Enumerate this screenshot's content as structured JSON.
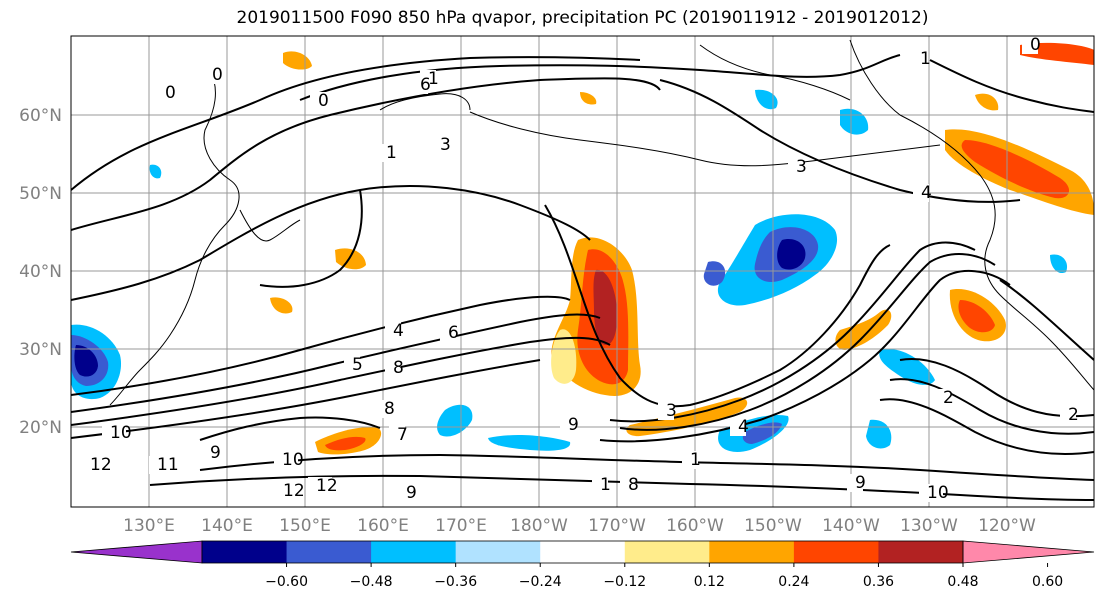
{
  "title": "2019011500 F090 850 hPa qvapor, precipitation PC (2019011912 - 2019012012)",
  "map": {
    "lat_labels": [
      "60°N",
      "50°N",
      "40°N",
      "30°N",
      "20°N"
    ],
    "lon_labels": [
      "130°E",
      "140°E",
      "150°E",
      "160°E",
      "170°E",
      "180°W",
      "170°W",
      "160°W",
      "150°W",
      "140°W",
      "130°W",
      "120°W"
    ],
    "contour_labels": [
      "0",
      "0",
      "1",
      "1",
      "0",
      "1",
      "3",
      "4",
      "4",
      "6",
      "5",
      "8",
      "8",
      "9",
      "9",
      "10",
      "12",
      "12",
      "9",
      "10",
      "9",
      "7",
      "3",
      "4",
      "2",
      "2",
      "0",
      "12",
      "11",
      "10",
      "6",
      "3",
      "1",
      "1",
      "8"
    ]
  },
  "colorbar": {
    "colors": [
      "#9932CC",
      "#00008B",
      "#3A5BD1",
      "#00BFFF",
      "#B0E2FF",
      "#FFFFFF",
      "#FFEC8B",
      "#FFA500",
      "#FF4500",
      "#B22222",
      "#FF88AA"
    ],
    "tick_labels": [
      "−0.60",
      "−0.48",
      "−0.36",
      "−0.24",
      "−0.12",
      "0.12",
      "0.24",
      "0.36",
      "0.48",
      "0.60"
    ]
  }
}
